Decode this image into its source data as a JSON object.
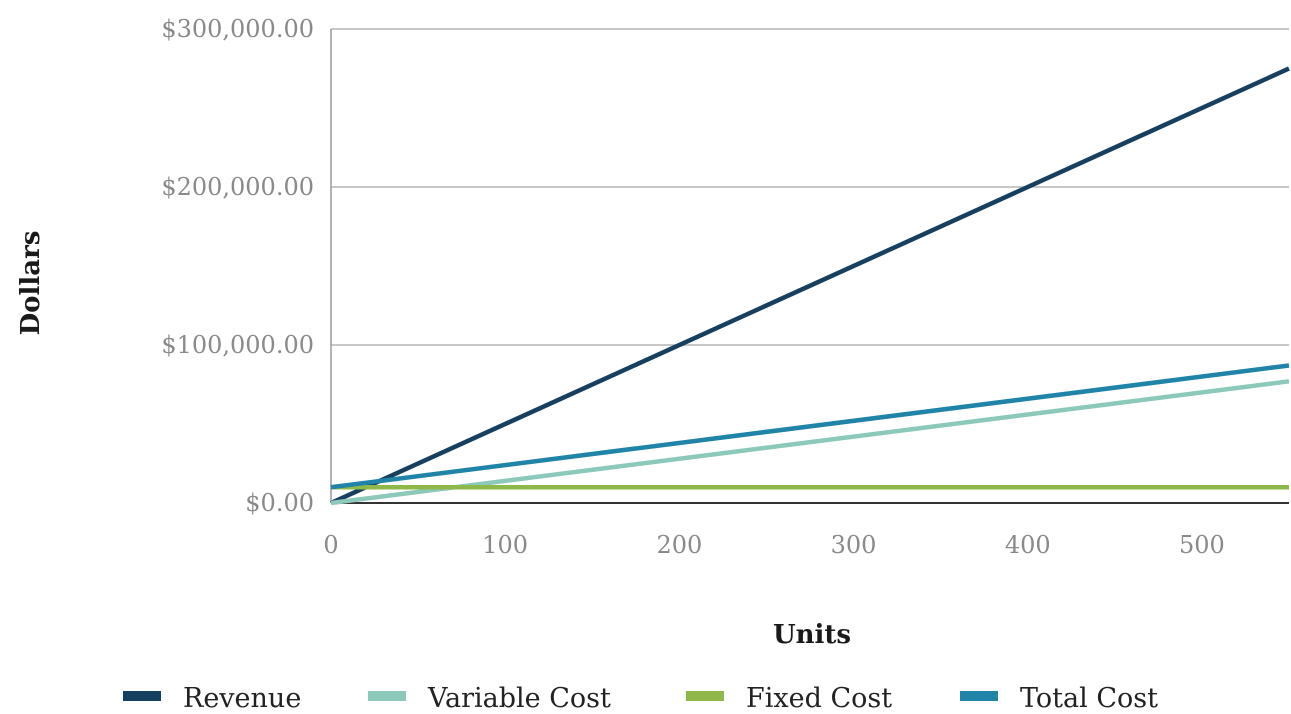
{
  "chart_data": {
    "type": "line",
    "title": "",
    "xlabel": "Units",
    "ylabel": "Dollars",
    "x": [
      0,
      550
    ],
    "xlim": [
      0,
      550
    ],
    "ylim": [
      0,
      300000
    ],
    "x_ticks": [
      0,
      100,
      200,
      300,
      400,
      500
    ],
    "x_tick_labels": [
      "0",
      "100",
      "200",
      "300",
      "400",
      "500"
    ],
    "y_ticks": [
      0,
      100000,
      200000,
      300000
    ],
    "y_tick_labels": [
      "$0.00",
      "$100,000.00",
      "$200,000.00",
      "$300,000.00"
    ],
    "grid": true,
    "legend_position": "bottom",
    "series": [
      {
        "name": "Revenue",
        "color": "#173f5f",
        "values": [
          0,
          275000
        ]
      },
      {
        "name": "Variable Cost",
        "color": "#8cc9bb",
        "values": [
          0,
          77000
        ]
      },
      {
        "name": "Fixed Cost",
        "color": "#8fb84a",
        "values": [
          10000,
          10000
        ]
      },
      {
        "name": "Total Cost",
        "color": "#1f84a8",
        "values": [
          10000,
          87000
        ]
      }
    ]
  }
}
